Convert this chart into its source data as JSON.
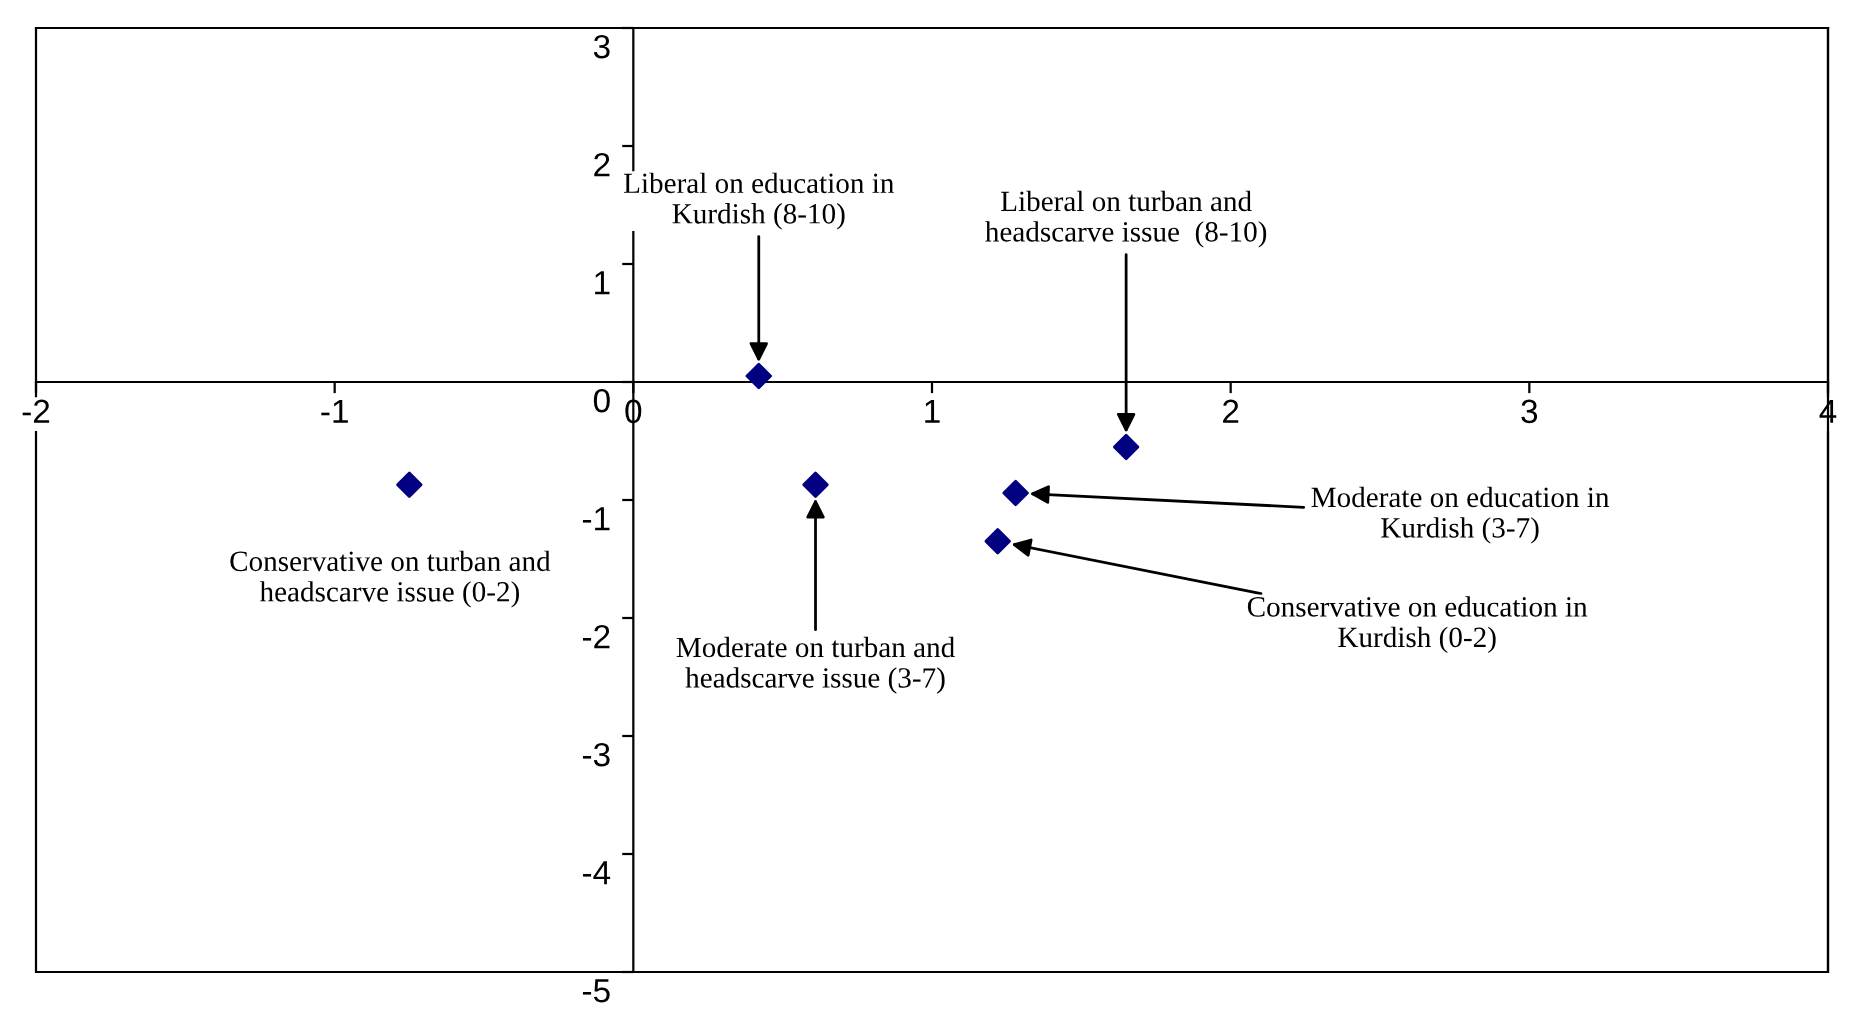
{
  "chart_data": {
    "type": "scatter",
    "marker": "diamond",
    "grid": false,
    "legend": false,
    "series": [
      {
        "color": "#000080",
        "x": [
          0.42,
          1.65,
          -0.75,
          0.61,
          1.28,
          1.22
        ],
        "values": [
          0.05,
          -0.55,
          -0.87,
          -0.87,
          -0.94,
          -1.35
        ]
      }
    ],
    "xlim": [
      -2,
      4
    ],
    "ylim": [
      -5,
      3
    ],
    "xticks": [
      -2,
      -1,
      0,
      1,
      2,
      3,
      4
    ],
    "yticks": [
      -5,
      -4,
      -3,
      -2,
      -1,
      0,
      1,
      2,
      3
    ],
    "annotations": [
      {
        "text": "Liberal on education in\nKurdish (8-10)",
        "x": 0.42,
        "y": 0.05
      },
      {
        "text": "Liberal on turban and\nheadscarve issue  (8-10)",
        "x": 1.65,
        "y": -0.55
      },
      {
        "text": "Conservative on turban and\nheadscarve issue (0-2)",
        "x": -0.75,
        "y": -0.87
      },
      {
        "text": "Moderate on turban and\nheadscarve issue (3-7)",
        "x": 0.61,
        "y": -0.87
      },
      {
        "text": "Moderate on education in\nKurdish (3-7)",
        "x": 1.28,
        "y": -0.94
      },
      {
        "text": "Conservative on education in\nKurdish (0-2)",
        "x": 1.22,
        "y": -1.35
      }
    ]
  }
}
